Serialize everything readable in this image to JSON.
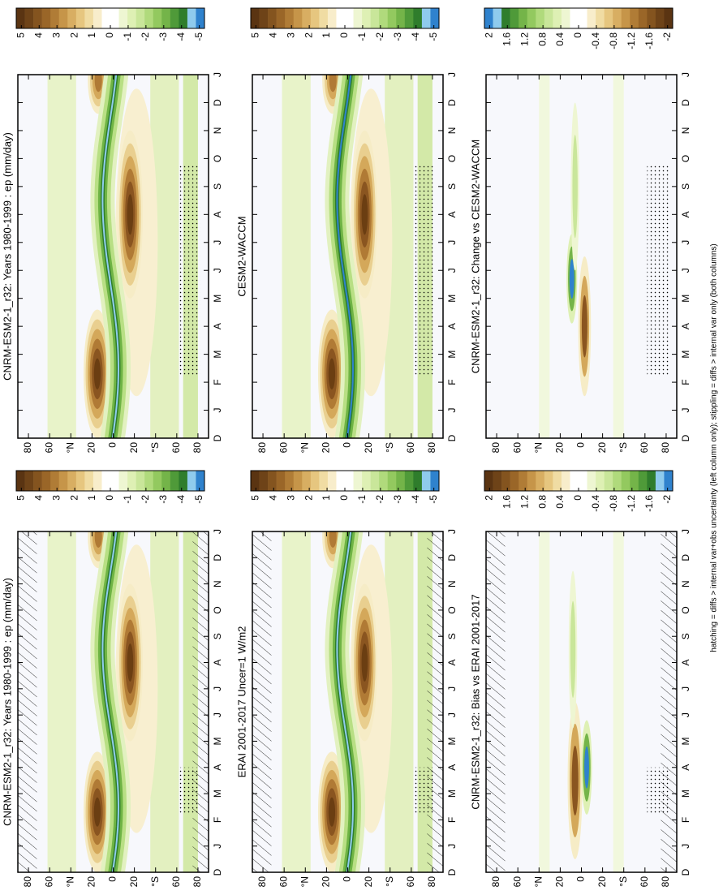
{
  "chart_data": [
    {
      "type": "contour",
      "title": "CNRM-ESM2-1_r32: Years 1980-1999 : ep (mm/day)",
      "categories": [
        "D",
        "J",
        "F",
        "M",
        "A",
        "M",
        "J",
        "J",
        "A",
        "S",
        "O",
        "N",
        "D",
        "J"
      ],
      "ylim": [
        -90,
        90
      ],
      "yticks": [
        80,
        60,
        {
          "value": 40,
          "label": "°N"
        },
        20,
        0,
        {
          "value": -20,
          "label": "20"
        },
        {
          "value": -40,
          "label": "°S"
        },
        {
          "value": -60,
          "label": "60"
        },
        {
          "value": -80,
          "label": "80"
        }
      ],
      "hatching": true,
      "stippling": true,
      "colorbar": {
        "ticks": [
          5,
          4,
          3,
          2,
          1,
          0,
          -1,
          -2,
          -3,
          -4,
          -5
        ],
        "colors": [
          "#5a3412",
          "#6e4318",
          "#84541f",
          "#9a6628",
          "#b07c36",
          "#c69549",
          "#d8ae62",
          "#e6c67f",
          "#f0dca3",
          "#f8edcb",
          "#ffffff",
          "#ffffff",
          "#eef6d2",
          "#def0b4",
          "#c9e69a",
          "#b0da7c",
          "#93c95f",
          "#74b449",
          "#4f9a39",
          "#2f7d2c",
          "#8fcbed",
          "#2f82cd"
        ]
      }
    },
    {
      "type": "contour",
      "title": "CNRM-ESM2-1_r32: Years 1980-1999 : ep (mm/day)",
      "categories": [
        "D",
        "J",
        "F",
        "M",
        "A",
        "M",
        "J",
        "J",
        "A",
        "S",
        "O",
        "N",
        "D",
        "J"
      ],
      "ylim": [
        -90,
        90
      ],
      "yticks": [
        80,
        60,
        {
          "value": 40,
          "label": "°N"
        },
        20,
        0,
        {
          "value": -20,
          "label": "20"
        },
        {
          "value": -40,
          "label": "°S"
        },
        {
          "value": -60,
          "label": "60"
        },
        {
          "value": -80,
          "label": "80"
        }
      ],
      "hatching": false,
      "stippling": true,
      "colorbar": {
        "ticks": [
          5,
          4,
          3,
          2,
          1,
          0,
          -1,
          -2,
          -3,
          -4,
          -5
        ],
        "colors": [
          "#5a3412",
          "#6e4318",
          "#84541f",
          "#9a6628",
          "#b07c36",
          "#c69549",
          "#d8ae62",
          "#e6c67f",
          "#f0dca3",
          "#f8edcb",
          "#ffffff",
          "#ffffff",
          "#eef6d2",
          "#def0b4",
          "#c9e69a",
          "#b0da7c",
          "#93c95f",
          "#74b449",
          "#4f9a39",
          "#2f7d2c",
          "#8fcbed",
          "#2f82cd"
        ]
      }
    },
    {
      "type": "contour",
      "title": "ERAI 2001-2017 Uncer=1 W/m2",
      "categories": [
        "D",
        "J",
        "F",
        "M",
        "A",
        "M",
        "J",
        "J",
        "A",
        "S",
        "O",
        "N",
        "D",
        "J"
      ],
      "ylim": [
        -90,
        90
      ],
      "yticks": [
        80,
        60,
        {
          "value": 40,
          "label": "°N"
        },
        20,
        0,
        {
          "value": -20,
          "label": "20"
        },
        {
          "value": -40,
          "label": "°S"
        },
        {
          "value": -60,
          "label": "60"
        },
        {
          "value": -80,
          "label": "80"
        }
      ],
      "hatching": true,
      "stippling": true,
      "colorbar": {
        "ticks": [
          5,
          4,
          3,
          2,
          1,
          0,
          -1,
          -2,
          -3,
          -4,
          -5
        ],
        "colors": [
          "#5a3412",
          "#6e4318",
          "#84541f",
          "#9a6628",
          "#b07c36",
          "#c69549",
          "#d8ae62",
          "#e6c67f",
          "#f0dca3",
          "#f8edcb",
          "#ffffff",
          "#ffffff",
          "#eef6d2",
          "#def0b4",
          "#c9e69a",
          "#b0da7c",
          "#93c95f",
          "#74b449",
          "#4f9a39",
          "#2f7d2c",
          "#8fcbed",
          "#2f82cd"
        ]
      }
    },
    {
      "type": "contour",
      "title": "CESM2-WACCM",
      "categories": [
        "D",
        "J",
        "F",
        "M",
        "A",
        "M",
        "J",
        "J",
        "A",
        "S",
        "O",
        "N",
        "D",
        "J"
      ],
      "ylim": [
        -90,
        90
      ],
      "yticks": [
        80,
        60,
        {
          "value": 40,
          "label": "°N"
        },
        20,
        0,
        {
          "value": -20,
          "label": "20"
        },
        {
          "value": -40,
          "label": "°S"
        },
        {
          "value": -60,
          "label": "60"
        },
        {
          "value": -80,
          "label": "80"
        }
      ],
      "hatching": false,
      "stippling": true,
      "colorbar": {
        "ticks": [
          5,
          4,
          3,
          2,
          1,
          0,
          -1,
          -2,
          -3,
          -4,
          -5
        ],
        "colors": [
          "#5a3412",
          "#6e4318",
          "#84541f",
          "#9a6628",
          "#b07c36",
          "#c69549",
          "#d8ae62",
          "#e6c67f",
          "#f0dca3",
          "#f8edcb",
          "#ffffff",
          "#ffffff",
          "#eef6d2",
          "#def0b4",
          "#c9e69a",
          "#b0da7c",
          "#93c95f",
          "#74b449",
          "#4f9a39",
          "#2f7d2c",
          "#8fcbed",
          "#2f82cd"
        ]
      }
    },
    {
      "type": "contour",
      "title": "CNRM-ESM2-1_r32: Bias vs ERAI 2001-2017",
      "categories": [
        "D",
        "J",
        "F",
        "M",
        "A",
        "M",
        "J",
        "J",
        "A",
        "S",
        "O",
        "N",
        "D",
        "J"
      ],
      "ylim": [
        -90,
        90
      ],
      "yticks": [
        80,
        60,
        {
          "value": 40,
          "label": "°N"
        },
        20,
        0,
        {
          "value": -20,
          "label": "20"
        },
        {
          "value": -40,
          "label": "°S"
        },
        {
          "value": -60,
          "label": "60"
        },
        {
          "value": -80,
          "label": "80"
        }
      ],
      "hatching": true,
      "stippling": true,
      "colorbar": {
        "ticks": [
          2,
          1.6,
          1.2,
          0.8,
          0.4,
          0,
          -0.4,
          -0.8,
          -1.2,
          -1.6,
          -2
        ],
        "colors": [
          "#5a3412",
          "#6e4318",
          "#84541f",
          "#9a6628",
          "#b07c36",
          "#c69549",
          "#d8ae62",
          "#e6c67f",
          "#f0dca3",
          "#f8edcb",
          "#ffffff",
          "#ffffff",
          "#eef6d2",
          "#def0b4",
          "#c9e69a",
          "#b0da7c",
          "#93c95f",
          "#74b449",
          "#4f9a39",
          "#2f7d2c",
          "#8fcbed",
          "#2f82cd"
        ]
      }
    },
    {
      "type": "contour",
      "title": "CNRM-ESM2-1_r32: Change vs CESM2-WACCM",
      "categories": [
        "D",
        "J",
        "F",
        "M",
        "A",
        "M",
        "J",
        "J",
        "A",
        "S",
        "O",
        "N",
        "D",
        "J"
      ],
      "ylim": [
        -90,
        90
      ],
      "yticks": [
        80,
        60,
        {
          "value": 40,
          "label": "°N"
        },
        20,
        0,
        {
          "value": -20,
          "label": "20"
        },
        {
          "value": -40,
          "label": "°S"
        },
        {
          "value": -60,
          "label": "60"
        },
        {
          "value": -80,
          "label": "80"
        }
      ],
      "hatching": false,
      "stippling": true,
      "colorbar": {
        "ticks": [
          2,
          1.6,
          1.2,
          0.8,
          0.4,
          0,
          -0.4,
          -0.8,
          -1.2,
          -1.6,
          -2
        ],
        "colors": [
          "#2f82cd",
          "#8fcbed",
          "#2f7d2c",
          "#4f9a39",
          "#74b449",
          "#93c95f",
          "#b0da7c",
          "#c9e69a",
          "#def0b4",
          "#eef6d2",
          "#ffffff",
          "#ffffff",
          "#f8edcb",
          "#f0dca3",
          "#e6c67f",
          "#d8ae62",
          "#c69549",
          "#b07c36",
          "#9a6628",
          "#84541f",
          "#6e4318",
          "#5a3412"
        ]
      }
    }
  ],
  "footnote": "hatching = diffs > internal var+obs uncertainty (left column only); stippling = diffs > internal var only (both columns)"
}
